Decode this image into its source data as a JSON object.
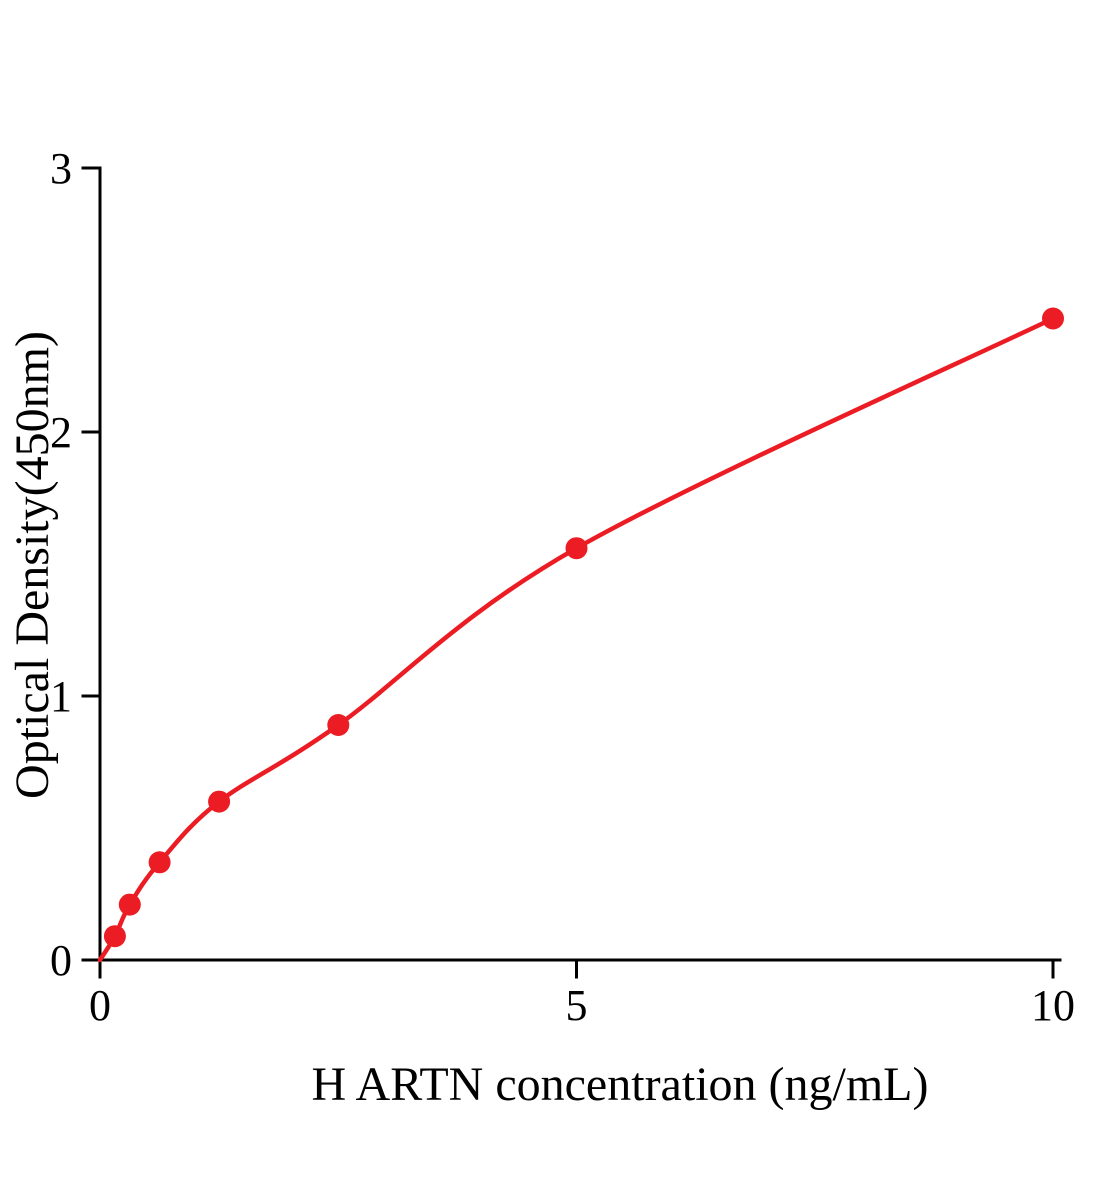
{
  "chart_data": {
    "type": "scatter",
    "title": "",
    "xlabel": "H ARTN concentration (ng/mL)",
    "ylabel": "Optical Density(450nm)",
    "x": [
      0.156,
      0.3125,
      0.625,
      1.25,
      2.5,
      5,
      10
    ],
    "y": [
      0.09,
      0.21,
      0.37,
      0.6,
      0.89,
      1.56,
      2.43
    ],
    "curve_start": [
      0,
      0
    ],
    "xlim": [
      0,
      10
    ],
    "ylim": [
      0,
      3
    ],
    "xticks": [
      0,
      5,
      10
    ],
    "yticks": [
      0,
      1,
      2,
      3
    ],
    "grid": false,
    "legend": "none",
    "accent_color": "#ec1c24",
    "axis_color": "#000000",
    "marker": "circle",
    "fit": "smooth saturating curve through points"
  }
}
